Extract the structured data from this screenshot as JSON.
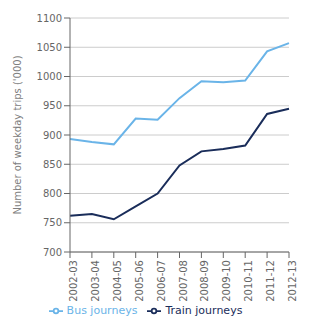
{
  "chart_data": {
    "type": "line",
    "ylabel": "Number of weekday trips ('000)",
    "categories": [
      "2002-03",
      "2003-04",
      "2004-05",
      "2005-06",
      "2006-07",
      "2007-08",
      "2008-09",
      "2009-10",
      "2010-11",
      "2011-12",
      "2012-13"
    ],
    "series": [
      {
        "name": "Train journeys",
        "color": "#1a2d5a",
        "values": [
          762,
          765,
          756,
          778,
          800,
          848,
          872,
          876,
          882,
          936,
          945
        ]
      },
      {
        "name": "Bus journeys",
        "color": "#6ab4e8",
        "values": [
          893,
          888,
          884,
          928,
          926,
          963,
          992,
          990,
          993,
          1043,
          1057
        ]
      }
    ],
    "ylim": [
      700,
      1100
    ],
    "yticks": [
      700,
      750,
      800,
      850,
      900,
      950,
      1000,
      1050,
      1100
    ],
    "grid": true,
    "legend": "bottom"
  }
}
